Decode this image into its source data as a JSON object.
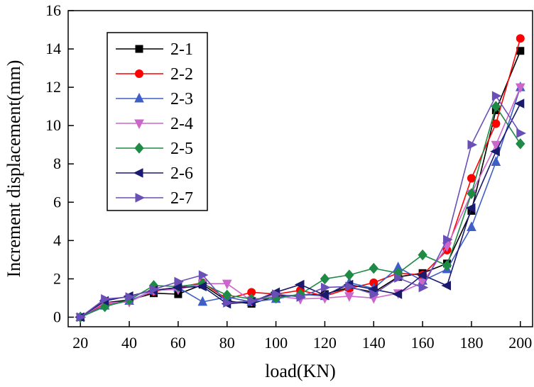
{
  "chart_data": {
    "type": "line",
    "xlabel": "load(KN)",
    "ylabel": "Increment displacement(mm)",
    "xlim": [
      15,
      205
    ],
    "ylim": [
      -0.5,
      16
    ],
    "xticks": [
      20,
      40,
      60,
      80,
      100,
      120,
      140,
      160,
      180,
      200
    ],
    "yticks": [
      0,
      2,
      4,
      6,
      8,
      10,
      12,
      14,
      16
    ],
    "grid": false,
    "legend_position": "top-left",
    "x": [
      20,
      30,
      40,
      50,
      60,
      70,
      80,
      90,
      100,
      110,
      120,
      130,
      140,
      150,
      160,
      170,
      180,
      190,
      200
    ],
    "series": [
      {
        "name": "2-1",
        "color": "#000000",
        "marker": "square",
        "values": [
          0,
          0.75,
          0.9,
          1.25,
          1.2,
          1.7,
          0.85,
          0.7,
          1.1,
          1.15,
          1.2,
          1.55,
          1.3,
          2.1,
          2.3,
          2.8,
          5.55,
          10.8,
          13.9
        ]
      },
      {
        "name": "2-2",
        "color": "#ff0000",
        "marker": "circle",
        "values": [
          0,
          0.7,
          0.85,
          1.35,
          1.55,
          1.8,
          0.95,
          1.3,
          1.2,
          1.4,
          1.1,
          1.5,
          1.8,
          2.3,
          2.2,
          3.5,
          7.25,
          10.1,
          14.55
        ]
      },
      {
        "name": "2-3",
        "color": "#3f5fc8",
        "marker": "triangle-up",
        "values": [
          0,
          0.6,
          0.85,
          1.4,
          1.55,
          0.8,
          1.05,
          0.8,
          0.95,
          1.2,
          1.1,
          1.8,
          1.5,
          2.6,
          1.9,
          2.5,
          4.7,
          8.1,
          12.0
        ]
      },
      {
        "name": "2-4",
        "color": "#cc66cc",
        "marker": "triangle-down",
        "values": [
          0,
          0.75,
          0.8,
          1.4,
          1.45,
          1.75,
          1.75,
          0.85,
          1.1,
          0.95,
          1.0,
          1.1,
          1.0,
          1.25,
          1.8,
          3.7,
          6.45,
          9.0,
          12.0
        ]
      },
      {
        "name": "2-5",
        "color": "#1e8a46",
        "marker": "diamond",
        "values": [
          0,
          0.55,
          0.9,
          1.65,
          1.6,
          1.75,
          1.15,
          0.95,
          1.0,
          1.2,
          2.0,
          2.2,
          2.55,
          2.3,
          3.25,
          2.7,
          6.45,
          11.0,
          9.05
        ]
      },
      {
        "name": "2-6",
        "color": "#1a1a6e",
        "marker": "triangle-left",
        "values": [
          0,
          0.85,
          1.1,
          1.4,
          1.55,
          1.6,
          0.7,
          0.8,
          1.3,
          1.7,
          1.15,
          1.7,
          1.45,
          1.2,
          2.2,
          1.65,
          5.7,
          8.65,
          11.15
        ]
      },
      {
        "name": "2-7",
        "color": "#6a4fb8",
        "marker": "triangle-right",
        "values": [
          0,
          0.95,
          1.05,
          1.45,
          1.85,
          2.2,
          0.75,
          0.85,
          1.2,
          1.05,
          1.55,
          1.6,
          1.2,
          2.05,
          1.55,
          4.05,
          9.0,
          11.55,
          9.6
        ]
      }
    ]
  }
}
